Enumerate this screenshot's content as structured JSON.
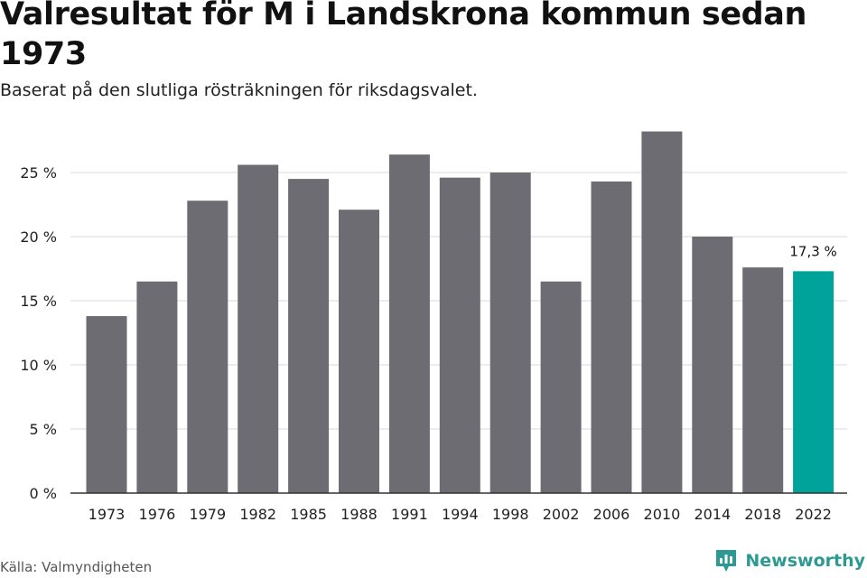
{
  "header": {
    "title": "Valresultat för M i Landskrona kommun sedan 1973",
    "subtitle": "Baserat på den slutliga rösträkningen för riksdagsvalet."
  },
  "footer": {
    "source": "Källa: Valmyndigheten",
    "brand": "Newsworthy",
    "brand_icon": "newsworthy-logo-icon"
  },
  "colors": {
    "bar": "#6d6c72",
    "highlight": "#00a39a",
    "grid": "#d9d9d9",
    "axis": "#333333"
  },
  "chart_data": {
    "type": "bar",
    "categories": [
      "1973",
      "1976",
      "1979",
      "1982",
      "1985",
      "1988",
      "1991",
      "1994",
      "1998",
      "2002",
      "2006",
      "2010",
      "2014",
      "2018",
      "2022"
    ],
    "values": [
      13.8,
      16.5,
      22.8,
      25.6,
      24.5,
      22.1,
      26.4,
      24.6,
      25.0,
      16.5,
      24.3,
      28.2,
      20.0,
      17.6,
      17.3
    ],
    "highlight_index": 14,
    "data_labels": [
      {
        "index": 14,
        "text": "17,3 %"
      }
    ],
    "ylim": [
      0,
      30
    ],
    "yticks": [
      0,
      5,
      10,
      15,
      20,
      25
    ],
    "ytick_labels": [
      "0 %",
      "5 %",
      "10 %",
      "15 %",
      "20 %",
      "25 %"
    ],
    "grid": true,
    "legend": "none"
  }
}
